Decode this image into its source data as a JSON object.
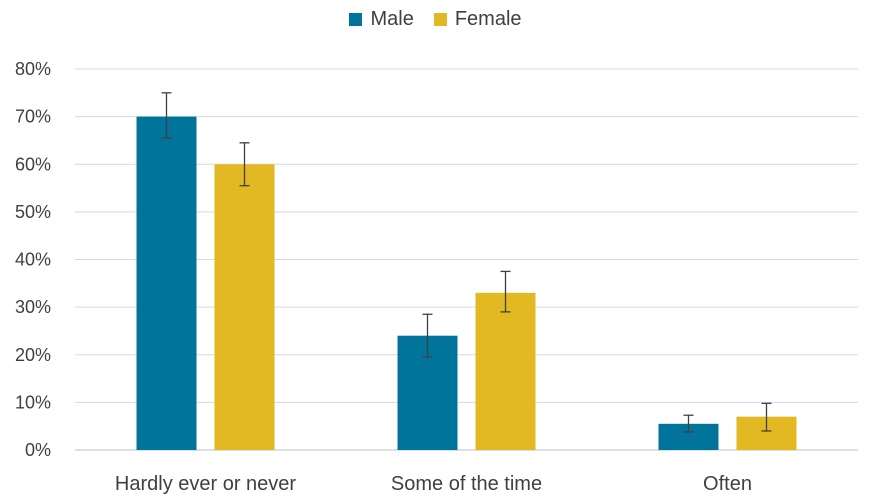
{
  "chart_data": {
    "type": "bar",
    "categories": [
      "Hardly ever or never",
      "Some of the time",
      "Often"
    ],
    "series": [
      {
        "name": "Male",
        "color": "#00749a",
        "values": [
          70,
          24,
          5.5
        ],
        "error_low": [
          65.5,
          19.5,
          3.8
        ],
        "error_high": [
          75,
          28.5,
          7.3
        ]
      },
      {
        "name": "Female",
        "color": "#e2b823",
        "values": [
          60,
          33,
          7
        ],
        "error_low": [
          55.5,
          29,
          4
        ],
        "error_high": [
          64.5,
          37.5,
          9.8
        ]
      }
    ],
    "y_ticks": [
      "0%",
      "10%",
      "20%",
      "30%",
      "40%",
      "50%",
      "60%",
      "70%",
      "80%"
    ],
    "ylim": [
      0,
      80
    ],
    "grid": true,
    "legend_position": "top-center"
  }
}
